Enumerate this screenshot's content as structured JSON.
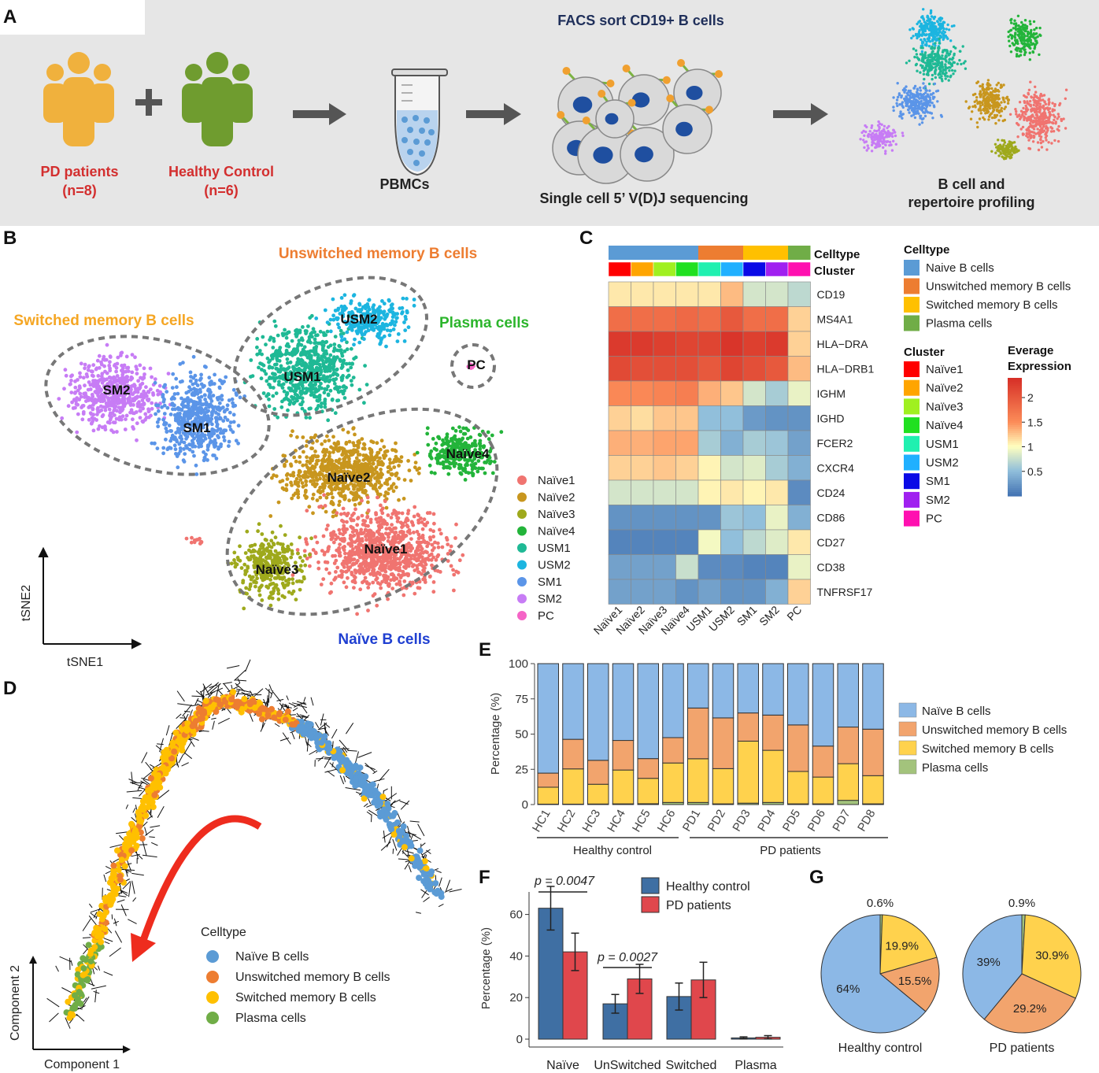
{
  "colors": {
    "naive": "#5b9bd5",
    "unswitched": "#ed7d31",
    "switched": "#ffc000",
    "plasma": "#70ad47",
    "healthy_bar": "#3f6fa3",
    "pd_bar": "#e0474c",
    "pd_text": "#d32f2f",
    "pd_people": "#f0b13d",
    "hc_people": "#6f9c2f"
  },
  "panel_labels": {
    "a": "A",
    "b": "B",
    "c": "C",
    "d": "D",
    "e": "E",
    "f": "F",
    "g": "G"
  },
  "panelA": {
    "pd_label": "PD patients",
    "pd_n": "(n=8)",
    "hc_label": "Healthy Control",
    "hc_n": "(n=6)",
    "plus": "+",
    "pbmc": "PBMCs",
    "facs": "FACS sort CD19+ B cells",
    "seq": "Single cell 5’ V(D)J sequencing",
    "profiling_line1": "B cell and",
    "profiling_line2": "repertoire profiling"
  },
  "panelB": {
    "group_labels": {
      "unswitched": "Unswitched memory B cells",
      "switched": "Switched memory B cells",
      "plasma": "Plasma cells",
      "naive": "Naïve B cells"
    },
    "cluster_labels": [
      "USM2",
      "USM1",
      "SM2",
      "SM1",
      "PC",
      "Naïve2",
      "Naïve4",
      "Naïve1",
      "Naïve3"
    ],
    "axis_x": "tSNE1",
    "axis_y": "tSNE2",
    "legend": [
      {
        "name": "Naïve1",
        "color": "#f07470"
      },
      {
        "name": "Naïve2",
        "color": "#c8961e"
      },
      {
        "name": "Naïve3",
        "color": "#9ea91c"
      },
      {
        "name": "Naïve4",
        "color": "#23b43a"
      },
      {
        "name": "USM1",
        "color": "#1fb995"
      },
      {
        "name": "USM2",
        "color": "#1cb5e0"
      },
      {
        "name": "SM1",
        "color": "#5b95e8"
      },
      {
        "name": "SM2",
        "color": "#c77cf5"
      },
      {
        "name": "PC",
        "color": "#f564c6"
      }
    ]
  },
  "panelC": {
    "top_labels": {
      "celltype": "Celltype",
      "cluster": "Cluster"
    },
    "genes": [
      "CD19",
      "MS4A1",
      "HLA−DRA",
      "HLA−DRB1",
      "IGHM",
      "IGHD",
      "FCER2",
      "CXCR4",
      "CD24",
      "CD86",
      "CD27",
      "CD38",
      "TNFRSF17"
    ],
    "clusters": [
      "Naïve1",
      "Naïve2",
      "Naïve3",
      "Naïve4",
      "USM1",
      "USM2",
      "SM1",
      "SM2",
      "PC"
    ],
    "celltype_colors": [
      "#5b9bd5",
      "#5b9bd5",
      "#5b9bd5",
      "#5b9bd5",
      "#ed7d31",
      "#ed7d31",
      "#ffc000",
      "#ffc000",
      "#70ad47"
    ],
    "cluster_colors": [
      "#ff0000",
      "#ffa500",
      "#a0f020",
      "#20e020",
      "#20f0b0",
      "#20b0ff",
      "#0a0ae6",
      "#a020f0",
      "#ff10b0"
    ],
    "values": [
      [
        1.1,
        1.1,
        1.1,
        1.1,
        1.1,
        1.3,
        0.8,
        0.8,
        0.7
      ],
      [
        1.8,
        1.8,
        1.8,
        1.85,
        1.8,
        2.0,
        1.8,
        1.8,
        1.2
      ],
      [
        2.3,
        2.3,
        2.25,
        2.2,
        2.2,
        2.35,
        2.25,
        2.3,
        1.2
      ],
      [
        2.15,
        2.1,
        2.1,
        2.1,
        2.0,
        2.2,
        2.1,
        2.0,
        1.3
      ],
      [
        1.55,
        1.55,
        1.6,
        1.65,
        1.35,
        1.25,
        0.8,
        0.6,
        0.9
      ],
      [
        1.2,
        1.15,
        1.25,
        1.25,
        0.5,
        0.5,
        0.25,
        0.2,
        0.2
      ],
      [
        1.35,
        1.35,
        1.4,
        1.4,
        0.6,
        0.4,
        0.6,
        0.55,
        0.3
      ],
      [
        1.2,
        1.2,
        1.25,
        1.2,
        1.05,
        0.8,
        0.85,
        0.6,
        0.4
      ],
      [
        0.8,
        0.8,
        0.8,
        0.8,
        1.05,
        1.1,
        1.05,
        1.1,
        0.15
      ],
      [
        0.2,
        0.2,
        0.2,
        0.2,
        0.2,
        0.55,
        0.5,
        0.9,
        0.4
      ],
      [
        0.1,
        0.1,
        0.1,
        0.1,
        0.95,
        0.5,
        0.7,
        0.85,
        1.1
      ],
      [
        0.3,
        0.3,
        0.3,
        0.75,
        0.15,
        0.15,
        0.1,
        0.1,
        0.9
      ],
      [
        0.3,
        0.3,
        0.3,
        0.2,
        0.3,
        0.2,
        0.2,
        0.4,
        1.2
      ]
    ],
    "legend_celltype_title": "Celltype",
    "legend_celltype": [
      "Naive B cells",
      "Unswitched memory B cells",
      "Switched memory B cells",
      "Plasma cells"
    ],
    "legend_cluster_title": "Cluster",
    "legend_cluster": [
      "Naïve1",
      "Naïve2",
      "Naïve3",
      "Naïve4",
      "USM1",
      "USM2",
      "SM1",
      "SM2",
      "PC"
    ],
    "colorbar_title_line1": "Everage",
    "colorbar_title_line2": "Expression",
    "colorbar_ticks": [
      "2",
      "1.5",
      "1",
      "0.5"
    ]
  },
  "panelD": {
    "axis_x": "Component 1",
    "axis_y": "Component 2",
    "legend_title": "Celltype",
    "legend": [
      "Naïve B cells",
      "Unswitched memory B cells",
      "Switched memory B cells",
      "Plasma cells"
    ]
  },
  "chart_data": [
    {
      "type": "bar",
      "id": "E",
      "title": "",
      "ylabel": "Percentage (%)",
      "ylim": [
        0,
        100
      ],
      "yticks": [
        "0",
        "25",
        "50",
        "75",
        "100"
      ],
      "categories": [
        "HC1",
        "HC2",
        "HC3",
        "HC4",
        "HC5",
        "HC6",
        "PD1",
        "PD2",
        "PD3",
        "PD4",
        "PD5",
        "PD6",
        "PD7",
        "PD8"
      ],
      "group_labels": [
        "Healthy control",
        "PD patients"
      ],
      "stacked": true,
      "series": [
        {
          "name": "Plasma cells",
          "values": [
            0.3,
            0.3,
            0.4,
            0.5,
            0.6,
            1.5,
            1.5,
            0.5,
            1.0,
            1.5,
            0.5,
            0.5,
            3.0,
            0.5
          ]
        },
        {
          "name": "Switched memory B cells",
          "values": [
            12,
            25,
            14,
            24,
            18,
            28,
            31,
            25,
            44,
            37,
            23,
            19,
            26,
            20
          ]
        },
        {
          "name": "Unswitched memory B cells",
          "values": [
            10,
            21,
            17,
            21,
            14,
            18,
            36,
            36,
            20,
            25,
            33,
            22,
            26,
            33
          ]
        },
        {
          "name": "Naïve B cells",
          "values": [
            77.7,
            53.7,
            68.6,
            54.5,
            67.4,
            52.5,
            31.5,
            38.5,
            35.0,
            36.5,
            43.5,
            58.5,
            45.0,
            46.5
          ]
        }
      ],
      "legend": [
        "Naïve B cells",
        "Unswitched memory B cells",
        "Switched memory B cells",
        "Plasma cells"
      ]
    },
    {
      "type": "bar",
      "id": "F",
      "ylabel": "Percentage (%)",
      "ylim": [
        0,
        75
      ],
      "yticks": [
        "0",
        "20",
        "40",
        "60"
      ],
      "categories": [
        "Naïve",
        "UnSwitched",
        "Switched",
        "Plasma"
      ],
      "series": [
        {
          "name": "Healthy control",
          "values": [
            63,
            17,
            20.5,
            0.6
          ],
          "err": [
            10.5,
            4.5,
            6.5,
            0.5
          ]
        },
        {
          "name": "PD patients",
          "values": [
            42,
            29,
            28.5,
            0.9
          ],
          "err": [
            9,
            7,
            8.5,
            0.8
          ]
        }
      ],
      "annotations": [
        "p = 0.0047",
        "p = 0.0027"
      ]
    },
    {
      "type": "pie",
      "id": "G",
      "pies": [
        {
          "title": "Healthy control",
          "labels": [
            "Naïve B cells",
            "Unswitched memory B cells",
            "Switched memory B cells",
            "Plasma cells"
          ],
          "values": [
            64,
            15.5,
            19.9,
            0.6
          ],
          "value_labels": [
            "64%",
            "15.5%",
            "19.9%",
            "0.6%"
          ]
        },
        {
          "title": "PD patients",
          "labels": [
            "Naïve B cells",
            "Unswitched memory B cells",
            "Switched memory B cells",
            "Plasma cells"
          ],
          "values": [
            39,
            29.2,
            30.9,
            0.9
          ],
          "value_labels": [
            "39%",
            "29.2%",
            "30.9%",
            "0.9%"
          ]
        }
      ]
    }
  ]
}
